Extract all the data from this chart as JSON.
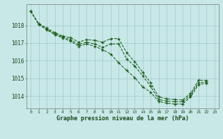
{
  "title": "Graphe pression niveau de la mer (hPa)",
  "background_color": "#c8e8e8",
  "grid_color": "#a0c8c8",
  "line_color": "#1a5c1a",
  "xlim": [
    -0.5,
    23.5
  ],
  "ylim": [
    1013.3,
    1019.2
  ],
  "yticks": [
    1014,
    1015,
    1016,
    1017,
    1018
  ],
  "xticks": [
    0,
    1,
    2,
    3,
    4,
    5,
    6,
    7,
    8,
    9,
    10,
    11,
    12,
    13,
    14,
    15,
    16,
    17,
    18,
    19,
    20,
    21,
    22,
    23
  ],
  "line1": [
    1018.8,
    1018.1,
    1017.85,
    1017.6,
    1017.4,
    1017.3,
    1017.05,
    1017.2,
    1017.15,
    1017.05,
    1017.25,
    1017.25,
    1016.45,
    1015.95,
    1015.35,
    1014.75,
    1013.95,
    1013.85,
    1013.8,
    1013.78,
    1014.15,
    1014.9,
    1014.88,
    null
  ],
  "line2": [
    1018.8,
    1018.05,
    1017.78,
    1017.52,
    1017.35,
    1017.18,
    1016.92,
    1017.05,
    1016.95,
    1016.75,
    1016.95,
    1016.95,
    1016.1,
    1015.7,
    1015.15,
    1014.55,
    1013.8,
    1013.72,
    1013.68,
    1013.68,
    1014.05,
    1014.75,
    1014.8,
    null
  ],
  "line3": [
    1018.8,
    1018.05,
    1017.75,
    1017.48,
    1017.28,
    1017.1,
    1016.82,
    1016.95,
    1016.82,
    1016.62,
    1016.38,
    1015.88,
    1015.45,
    1015.05,
    1014.52,
    1014.22,
    1013.7,
    1013.6,
    1013.55,
    1013.55,
    1013.95,
    1014.65,
    1014.72,
    null
  ]
}
